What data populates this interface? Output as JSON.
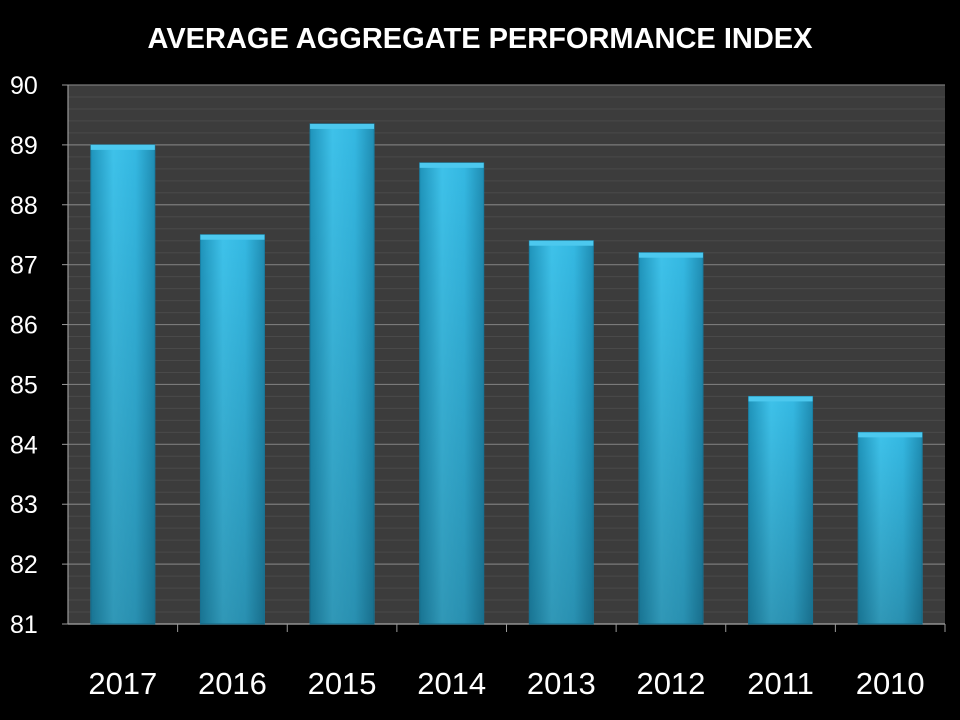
{
  "chart_data": {
    "type": "bar",
    "title": "AVERAGE AGGREGATE PERFORMANCE INDEX",
    "xlabel": "",
    "ylabel": "",
    "categories": [
      "2017",
      "2016",
      "2015",
      "2014",
      "2013",
      "2012",
      "2011",
      "2010"
    ],
    "values": [
      89.0,
      87.5,
      89.35,
      88.7,
      87.4,
      87.2,
      84.8,
      84.2
    ],
    "ylim": [
      81,
      90
    ],
    "yticks": [
      "81",
      "82",
      "83",
      "84",
      "85",
      "86",
      "87",
      "88",
      "89",
      "90"
    ],
    "grid": true,
    "legend": "none",
    "colors": {
      "background": "#000000",
      "plot_area": "#3c3c3c",
      "gridline": "#7a7a7a",
      "bar": "#2fb4de",
      "bar_dark": "#1e8fb4",
      "bar_light": "#4cc8ee",
      "text": "#ffffff"
    }
  }
}
